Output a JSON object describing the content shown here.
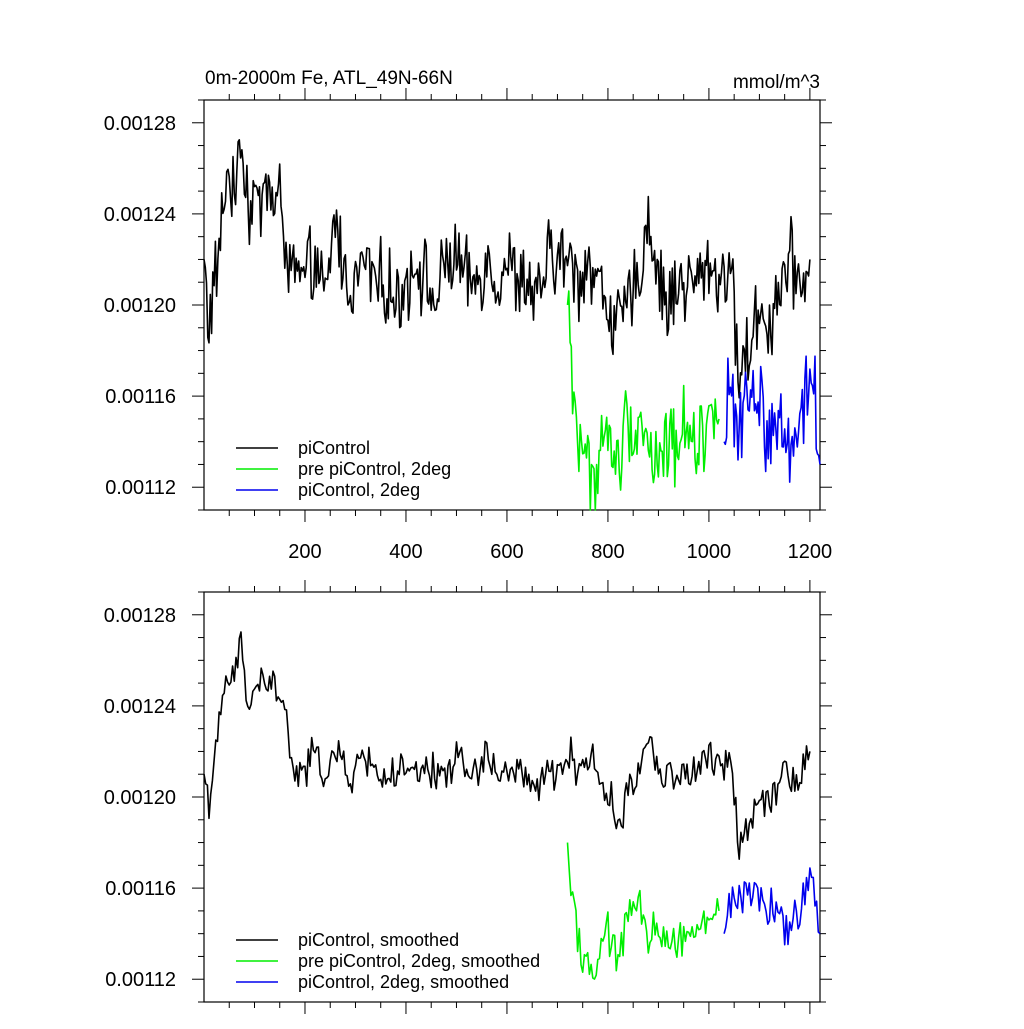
{
  "figure": {
    "title_left": "0m-2000m Fe, ATL_49N-66N",
    "title_right": "mmol/m^3"
  },
  "colors": {
    "piControl": "#000000",
    "pre_piControl_2deg": "#00ee00",
    "piControl_2deg": "#0000ee"
  },
  "chart_data": [
    {
      "type": "line",
      "xlim": [
        0,
        1220
      ],
      "ylim": [
        0.00111,
        0.00129
      ],
      "x_ticks": [
        200,
        400,
        600,
        800,
        1000,
        1200
      ],
      "y_ticks": [
        0.00112,
        0.00116,
        0.0012,
        0.00124,
        0.00128
      ],
      "y_tick_labels": [
        "0.00112",
        "0.00116",
        "0.00120",
        "0.00124",
        "0.00128"
      ],
      "x_tick_labels": [
        "200",
        "400",
        "600",
        "800",
        "1000",
        "1200"
      ],
      "legend_position": "bottom-left",
      "series": [
        {
          "name": "piControl",
          "color_key": "piControl",
          "amp": 0.9,
          "x": [
            0,
            10,
            20,
            30,
            40,
            50,
            60,
            70,
            80,
            90,
            100,
            110,
            120,
            130,
            140,
            150,
            160,
            170,
            180,
            190,
            200,
            220,
            240,
            260,
            280,
            300,
            320,
            340,
            360,
            380,
            400,
            420,
            440,
            460,
            480,
            500,
            520,
            540,
            560,
            580,
            600,
            620,
            640,
            660,
            680,
            700,
            720,
            740,
            760,
            780,
            800,
            820,
            840,
            860,
            880,
            900,
            920,
            940,
            960,
            980,
            1000,
            1020,
            1040,
            1060,
            1080,
            1100,
            1120,
            1140,
            1160,
            1180,
            1200
          ],
          "y": [
            0.00122,
            0.00119,
            0.00121,
            0.00122,
            0.00125,
            0.00126,
            0.00124,
            0.00128,
            0.00126,
            0.00124,
            0.00125,
            0.00124,
            0.00126,
            0.00125,
            0.00124,
            0.00125,
            0.00123,
            0.00121,
            0.00122,
            0.00121,
            0.00121,
            0.00122,
            0.0012,
            0.00124,
            0.00121,
            0.00121,
            0.00122,
            0.00121,
            0.00121,
            0.0012,
            0.00121,
            0.00122,
            0.00121,
            0.0012,
            0.00122,
            0.00122,
            0.00121,
            0.00121,
            0.00122,
            0.00121,
            0.00122,
            0.00121,
            0.00121,
            0.0012,
            0.00122,
            0.00122,
            0.00122,
            0.00121,
            0.00122,
            0.00121,
            0.0012,
            0.00119,
            0.0012,
            0.00121,
            0.00124,
            0.00121,
            0.0012,
            0.00121,
            0.00121,
            0.00121,
            0.00122,
            0.00121,
            0.00122,
            0.00117,
            0.00118,
            0.0012,
            0.00119,
            0.00121,
            0.00122,
            0.00121,
            0.00122
          ]
        },
        {
          "name": "pre piControl, 2deg",
          "color_key": "pre_piControl_2deg",
          "amp": 1.0,
          "x": [
            720,
            730,
            740,
            750,
            760,
            770,
            780,
            790,
            800,
            820,
            840,
            860,
            880,
            900,
            920,
            940,
            960,
            980,
            1000,
            1020
          ],
          "y": [
            0.0012,
            0.00117,
            0.00114,
            0.00114,
            0.00113,
            0.00112,
            0.00113,
            0.00114,
            0.00114,
            0.00113,
            0.00115,
            0.00115,
            0.00114,
            0.00113,
            0.00114,
            0.00114,
            0.00115,
            0.00114,
            0.00115,
            0.00115
          ]
        },
        {
          "name": "piControl, 2deg",
          "color_key": "piControl_2deg",
          "amp": 1.0,
          "x": [
            1030,
            1040,
            1060,
            1080,
            1100,
            1120,
            1140,
            1160,
            1180,
            1200,
            1210,
            1220
          ],
          "y": [
            0.00114,
            0.00116,
            0.00115,
            0.00116,
            0.00116,
            0.00114,
            0.00115,
            0.00114,
            0.00115,
            0.00117,
            0.00116,
            0.00113
          ]
        }
      ]
    },
    {
      "type": "line",
      "xlim": [
        0,
        1220
      ],
      "ylim": [
        0.00111,
        0.00129
      ],
      "x_ticks": [
        200,
        400,
        600,
        800,
        1000,
        1200
      ],
      "y_ticks": [
        0.00112,
        0.00116,
        0.0012,
        0.00124,
        0.00128
      ],
      "y_tick_labels": [
        "0.00112",
        "0.00116",
        "0.00120",
        "0.00124",
        "0.00128"
      ],
      "legend_position": "bottom-left",
      "series": [
        {
          "name": "piControl, smoothed",
          "color_key": "piControl",
          "amp": 0.45,
          "x": [
            0,
            10,
            20,
            30,
            40,
            50,
            60,
            70,
            80,
            90,
            100,
            110,
            120,
            130,
            140,
            150,
            160,
            170,
            180,
            190,
            200,
            220,
            240,
            260,
            280,
            300,
            320,
            340,
            360,
            380,
            400,
            420,
            440,
            460,
            480,
            500,
            520,
            540,
            560,
            580,
            600,
            620,
            640,
            660,
            680,
            700,
            720,
            740,
            760,
            780,
            800,
            820,
            840,
            860,
            880,
            900,
            920,
            940,
            960,
            980,
            1000,
            1020,
            1040,
            1060,
            1080,
            1100,
            1120,
            1140,
            1160,
            1180,
            1200
          ],
          "y": [
            0.00121,
            0.0012,
            0.00121,
            0.00123,
            0.00125,
            0.00125,
            0.00125,
            0.00127,
            0.00125,
            0.00124,
            0.00125,
            0.00125,
            0.00125,
            0.00125,
            0.00125,
            0.00124,
            0.00124,
            0.00122,
            0.00121,
            0.00121,
            0.00121,
            0.00122,
            0.00121,
            0.00122,
            0.00121,
            0.00121,
            0.00122,
            0.00121,
            0.00121,
            0.00121,
            0.00121,
            0.00121,
            0.00121,
            0.00121,
            0.00121,
            0.00122,
            0.00121,
            0.00121,
            0.00122,
            0.00121,
            0.00121,
            0.00121,
            0.00121,
            0.0012,
            0.00121,
            0.00121,
            0.00122,
            0.00121,
            0.00122,
            0.00121,
            0.0012,
            0.00119,
            0.0012,
            0.00121,
            0.00123,
            0.00121,
            0.00121,
            0.00121,
            0.00121,
            0.00121,
            0.00122,
            0.00121,
            0.00122,
            0.00118,
            0.00119,
            0.0012,
            0.0012,
            0.00121,
            0.00121,
            0.00121,
            0.00122
          ]
        },
        {
          "name": "pre piControl, 2deg, smoothed",
          "color_key": "pre_piControl_2deg",
          "amp": 0.5,
          "x": [
            720,
            730,
            740,
            750,
            760,
            770,
            780,
            790,
            800,
            820,
            840,
            860,
            880,
            900,
            920,
            940,
            960,
            980,
            1000,
            1020
          ],
          "y": [
            0.00118,
            0.00116,
            0.00114,
            0.00113,
            0.00113,
            0.00112,
            0.00113,
            0.00113,
            0.00114,
            0.00113,
            0.00115,
            0.00115,
            0.00114,
            0.00114,
            0.00114,
            0.00114,
            0.00114,
            0.00114,
            0.00115,
            0.00115
          ]
        },
        {
          "name": "piControl, 2deg, smoothed",
          "color_key": "piControl_2deg",
          "amp": 0.55,
          "x": [
            1030,
            1040,
            1060,
            1080,
            1100,
            1120,
            1140,
            1160,
            1180,
            1200,
            1210,
            1220
          ],
          "y": [
            0.00114,
            0.00115,
            0.00116,
            0.00116,
            0.00116,
            0.00115,
            0.00115,
            0.00114,
            0.00115,
            0.00117,
            0.00116,
            0.00114
          ]
        }
      ]
    }
  ]
}
